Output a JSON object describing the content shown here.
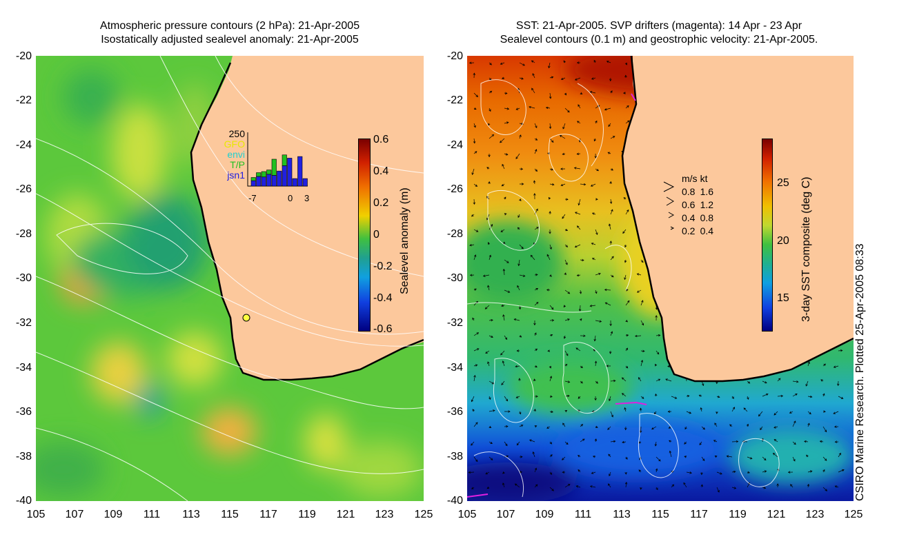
{
  "left_panel": {
    "title_line1": "Atmospheric pressure contours (2 hPa): 21-Apr-2005",
    "title_line2": "Isostatically adjusted sealevel anomaly: 21-Apr-2005",
    "y_ticks": [
      "-20",
      "-22",
      "-24",
      "-26",
      "-28",
      "-30",
      "-32",
      "-34",
      "-36",
      "-38",
      "-40"
    ],
    "x_ticks": [
      "105",
      "107",
      "109",
      "111",
      "113",
      "115",
      "117",
      "119",
      "121",
      "123",
      "125"
    ],
    "colorbar": {
      "label": "Sealevel anomaly (m)",
      "ticks": [
        "0.6",
        "0.4",
        "0.2",
        "0",
        "-0.2",
        "-0.4",
        "-0.6"
      ],
      "range": [
        -0.6,
        0.6
      ]
    },
    "inset": {
      "max_label": "250",
      "satellites": [
        {
          "name": "GFO",
          "color": "#e8e800"
        },
        {
          "name": "envi",
          "color": "#20d0d0"
        },
        {
          "name": "T/P",
          "color": "#20c020"
        },
        {
          "name": "jsn1",
          "color": "#2020e0"
        }
      ],
      "x_labels": [
        "-7",
        "0",
        "3"
      ],
      "bars": [
        {
          "day": -7,
          "jsn1": 0.1,
          "tp": 0.06,
          "gfo": 0.0
        },
        {
          "day": -6,
          "jsn1": 0.18,
          "tp": 0.07,
          "gfo": 0.0
        },
        {
          "day": -5,
          "jsn1": 0.17,
          "tp": 0.1,
          "gfo": 0.0
        },
        {
          "day": -4,
          "jsn1": 0.22,
          "tp": 0.08,
          "gfo": 0.0
        },
        {
          "day": -3,
          "jsn1": 0.2,
          "tp": 0.3,
          "gfo": 0.0
        },
        {
          "day": -2,
          "jsn1": 0.28,
          "tp": 0.0,
          "gfo": 0.0
        },
        {
          "day": -1,
          "jsn1": 0.38,
          "tp": 0.2,
          "gfo": 0.0
        },
        {
          "day": 0,
          "jsn1": 0.52,
          "tp": 0.0,
          "gfo": 0.0
        },
        {
          "day": 1,
          "jsn1": 0.14,
          "tp": 0.0,
          "gfo": 0.0
        },
        {
          "day": 2,
          "jsn1": 0.55,
          "tp": 0.0,
          "gfo": 0.0
        },
        {
          "day": 3,
          "jsn1": 0.14,
          "tp": 0.0,
          "gfo": 0.0
        }
      ]
    }
  },
  "right_panel": {
    "title_line1": "SST: 21-Apr-2005. SVP drifters (magenta): 14 Apr - 23 Apr",
    "title_line2": "Sealevel contours (0.1 m) and geostrophic velocity: 21-Apr-2005.",
    "y_ticks": [
      "-20",
      "-22",
      "-24",
      "-26",
      "-28",
      "-30",
      "-32",
      "-34",
      "-36",
      "-38",
      "-40"
    ],
    "x_ticks": [
      "105",
      "107",
      "109",
      "111",
      "113",
      "115",
      "117",
      "119",
      "121",
      "123",
      "125"
    ],
    "colorbar": {
      "label": "3-day SST composite (deg C)",
      "ticks": [
        "25",
        "20",
        "15"
      ],
      "range": [
        12,
        29
      ]
    },
    "velocity_legend": {
      "header_ms": "m/s",
      "header_kt": "kt",
      "rows": [
        {
          "ms": "0.8",
          "kt": "1.6"
        },
        {
          "ms": "0.6",
          "kt": "1.2"
        },
        {
          "ms": "0.4",
          "kt": "0.8"
        },
        {
          "ms": "0.2",
          "kt": "0.4"
        }
      ]
    }
  },
  "credit": "CSIRO Marine Research. Plotted 25-Apr-2005 08:33",
  "colors": {
    "land": "#fcc89c",
    "coast": "#000000",
    "contour": "#ffffff",
    "drifter": "#e020e0"
  }
}
